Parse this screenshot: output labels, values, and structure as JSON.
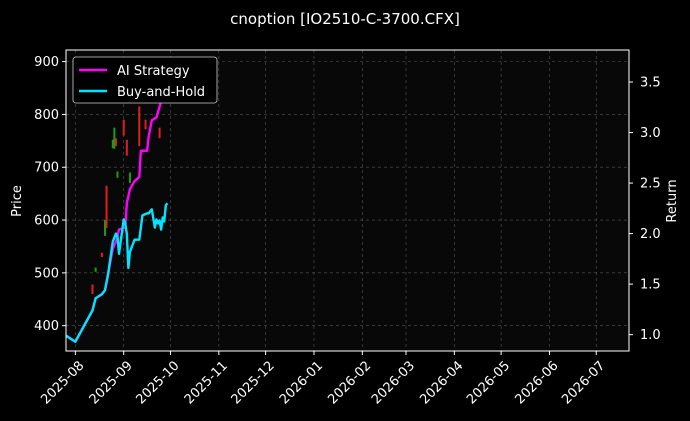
{
  "chart_data": {
    "type": "line",
    "title": "cnoption [IO2510-C-3700.CFX]",
    "xlabel": "",
    "ylabel": "Price",
    "y2label": "Return",
    "x_axis": {
      "type": "date",
      "range": [
        "2025-07-26",
        "2026-07-22"
      ],
      "tick_labels": [
        "2025-08",
        "2025-09",
        "2025-10",
        "2025-11",
        "2025-12",
        "2026-01",
        "2026-02",
        "2026-03",
        "2026-04",
        "2026-05",
        "2026-06",
        "2026-07"
      ],
      "tick_dates": [
        "2025-08-01",
        "2025-09-01",
        "2025-10-01",
        "2025-11-01",
        "2025-12-01",
        "2026-01-01",
        "2026-02-01",
        "2026-03-01",
        "2026-04-01",
        "2026-05-01",
        "2026-06-01",
        "2026-07-01"
      ]
    },
    "y_left": {
      "range": [
        352,
        922
      ],
      "ticks": [
        400,
        500,
        600,
        700,
        800,
        900
      ]
    },
    "y_right": {
      "range": [
        0.838,
        3.817
      ],
      "ticks": [
        1.0,
        1.5,
        2.0,
        2.5,
        3.0,
        3.5
      ]
    },
    "grid": true,
    "legend": {
      "placement": "top-left"
    },
    "series": [
      {
        "name": "AI Strategy",
        "color": "#ff00ff",
        "axis": "right",
        "points": [
          [
            "2025-07-26",
            0.99
          ],
          [
            "2025-08-01",
            0.93
          ],
          [
            "2025-08-12",
            1.24
          ],
          [
            "2025-08-14",
            1.36
          ],
          [
            "2025-08-18",
            1.4
          ],
          [
            "2025-08-20",
            1.44
          ],
          [
            "2025-08-22",
            1.6
          ],
          [
            "2025-08-25",
            1.85
          ],
          [
            "2025-08-27",
            1.92
          ],
          [
            "2025-08-29",
            2.04
          ],
          [
            "2025-09-02",
            2.06
          ],
          [
            "2025-09-03",
            2.3
          ],
          [
            "2025-09-05",
            2.44
          ],
          [
            "2025-09-08",
            2.52
          ],
          [
            "2025-09-11",
            2.56
          ],
          [
            "2025-09-12",
            2.82
          ],
          [
            "2025-09-16",
            2.82
          ],
          [
            "2025-09-17",
            2.96
          ],
          [
            "2025-09-19",
            3.12
          ],
          [
            "2025-09-22",
            3.15
          ],
          [
            "2025-09-25",
            3.31
          ],
          [
            "2025-09-26",
            3.5
          ],
          [
            "2025-09-29",
            3.6
          ]
        ]
      },
      {
        "name": "Buy-and-Hold",
        "color": "#00e5ff",
        "axis": "right",
        "points": [
          [
            "2025-07-26",
            0.99
          ],
          [
            "2025-08-01",
            0.93
          ],
          [
            "2025-08-12",
            1.24
          ],
          [
            "2025-08-14",
            1.36
          ],
          [
            "2025-08-18",
            1.4
          ],
          [
            "2025-08-20",
            1.44
          ],
          [
            "2025-08-22",
            1.6
          ],
          [
            "2025-08-25",
            1.92
          ],
          [
            "2025-08-27",
            2.0
          ],
          [
            "2025-08-28",
            1.97
          ],
          [
            "2025-08-29",
            1.8
          ],
          [
            "2025-09-01",
            2.14
          ],
          [
            "2025-09-02",
            2.1
          ],
          [
            "2025-09-03",
            2.0
          ],
          [
            "2025-09-04",
            1.66
          ],
          [
            "2025-09-05",
            1.82
          ],
          [
            "2025-09-08",
            1.94
          ],
          [
            "2025-09-11",
            1.94
          ],
          [
            "2025-09-13",
            2.18
          ],
          [
            "2025-09-16",
            2.2
          ],
          [
            "2025-09-17",
            2.2
          ],
          [
            "2025-09-19",
            2.24
          ],
          [
            "2025-09-21",
            2.06
          ],
          [
            "2025-09-22",
            2.14
          ],
          [
            "2025-09-23",
            2.1
          ],
          [
            "2025-09-24",
            2.13
          ],
          [
            "2025-09-25",
            2.04
          ],
          [
            "2025-09-26",
            2.16
          ],
          [
            "2025-09-27",
            2.12
          ],
          [
            "2025-09-28",
            2.28
          ],
          [
            "2025-09-29",
            2.3
          ]
        ]
      }
    ],
    "candles": {
      "axis": "left",
      "up_color": "#1a9c1a",
      "down_color": "#e02020",
      "bars": [
        [
          "2025-08-12",
          478,
          460,
          "down"
        ],
        [
          "2025-08-14",
          510,
          502,
          "up"
        ],
        [
          "2025-08-18",
          538,
          530,
          "down"
        ],
        [
          "2025-08-20",
          600,
          570,
          "up"
        ],
        [
          "2025-08-21",
          665,
          585,
          "down"
        ],
        [
          "2025-08-25",
          752,
          736,
          "up"
        ],
        [
          "2025-08-26",
          775,
          735,
          "up"
        ],
        [
          "2025-08-27",
          755,
          740,
          "down"
        ],
        [
          "2025-08-28",
          692,
          680,
          "up"
        ],
        [
          "2025-09-01",
          790,
          760,
          "down"
        ],
        [
          "2025-09-03",
          752,
          722,
          "down"
        ],
        [
          "2025-09-05",
          690,
          670,
          "up"
        ],
        [
          "2025-09-11",
          815,
          740,
          "down"
        ],
        [
          "2025-09-15",
          790,
          772,
          "down"
        ],
        [
          "2025-09-24",
          775,
          755,
          "down"
        ]
      ]
    }
  }
}
